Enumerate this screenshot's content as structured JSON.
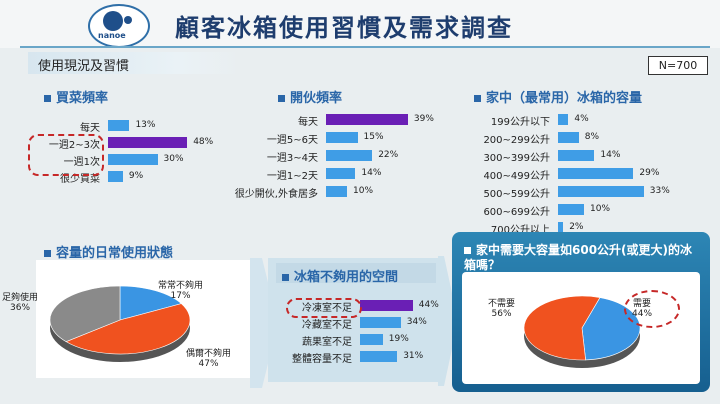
{
  "header": {
    "title": "顧客冰箱使用習慣及需求調查",
    "logo_text": "nanoe"
  },
  "section": {
    "label": "使用現況及習慣",
    "sample": "N=700"
  },
  "colors": {
    "bar": "#3f9de6",
    "highlight": "#6a1fb5",
    "pie_orange": "#f0521f",
    "pie_blue": "#3a95e3",
    "pie_gray": "#8a8a8a"
  },
  "chart_data": [
    {
      "type": "bar",
      "title": "買菜頻率",
      "categories": [
        "每天",
        "一週2~3次",
        "一週1次",
        "很少買菜"
      ],
      "values": [
        13,
        48,
        30,
        9
      ],
      "unit": "%",
      "highlight": 1
    },
    {
      "type": "bar",
      "title": "開伙頻率",
      "categories": [
        "每天",
        "一週5~6天",
        "一週3~4天",
        "一週1~2天",
        "很少開伙,外食居多"
      ],
      "values": [
        39,
        15,
        22,
        14,
        10
      ],
      "unit": "%",
      "highlight": 0
    },
    {
      "type": "bar",
      "title": "家中（最常用）冰箱的容量",
      "categories": [
        "199公升以下",
        "200~299公升",
        "300~399公升",
        "400~499公升",
        "500~599公升",
        "600~699公升",
        "700公升以上"
      ],
      "values": [
        4,
        8,
        14,
        29,
        33,
        10,
        2
      ],
      "unit": "%"
    },
    {
      "type": "pie",
      "title": "容量的日常使用狀態",
      "slices": [
        {
          "label": "常常不夠用",
          "value": 17
        },
        {
          "label": "偶爾不夠用",
          "value": 47
        },
        {
          "label": "足夠使用",
          "value": 36
        }
      ],
      "unit": "%"
    },
    {
      "type": "bar",
      "title": "冰箱不夠用的空間",
      "categories": [
        "冷凍室不足",
        "冷藏室不足",
        "蔬果室不足",
        "整體容量不足"
      ],
      "values": [
        44,
        34,
        19,
        31
      ],
      "unit": "%",
      "highlight": 0
    },
    {
      "type": "pie",
      "title": "家中需要大容量如600公升(或更大)的冰箱嗎？",
      "slices": [
        {
          "label": "需要",
          "value": 44
        },
        {
          "label": "不需要",
          "value": 56
        }
      ],
      "unit": "%"
    }
  ]
}
